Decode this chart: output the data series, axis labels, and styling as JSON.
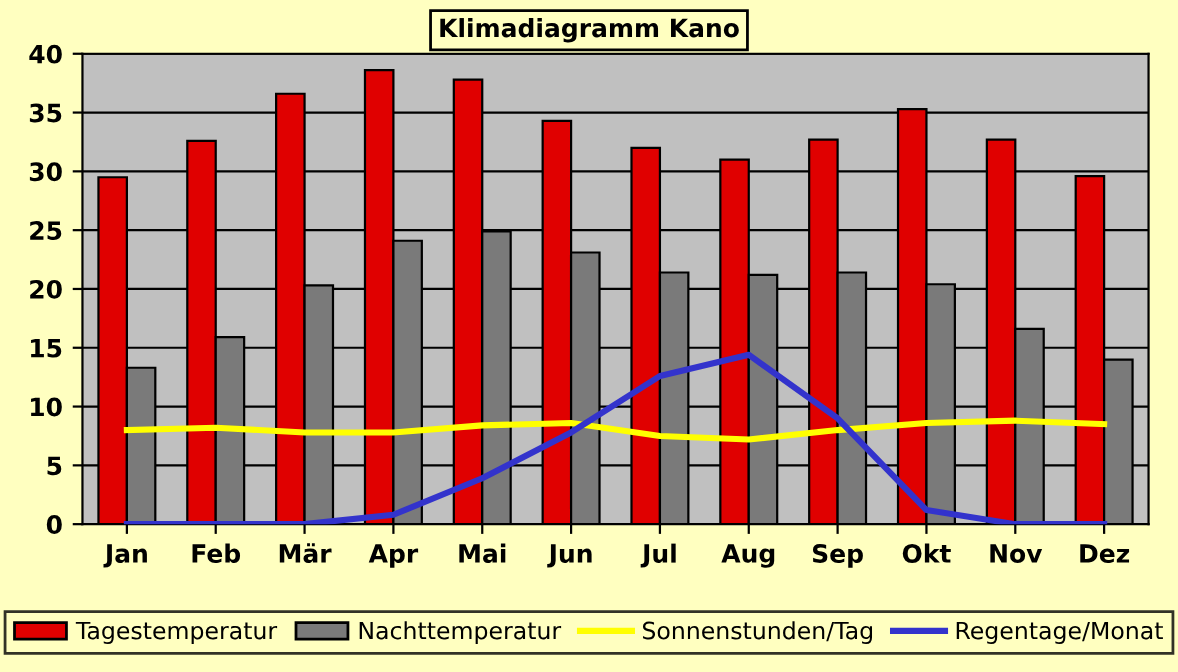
{
  "chart_data": {
    "type": "bar",
    "title": "Klimadiagramm Kano",
    "categories": [
      "Jan",
      "Feb",
      "Mär",
      "Apr",
      "Mai",
      "Jun",
      "Jul",
      "Aug",
      "Sep",
      "Okt",
      "Nov",
      "Dez"
    ],
    "series": [
      {
        "name": "Tagestemperatur",
        "color": "#e00000",
        "values": [
          29.5,
          32.6,
          36.6,
          38.6,
          37.8,
          34.3,
          32.0,
          31.0,
          32.7,
          35.3,
          32.7,
          29.6
        ]
      },
      {
        "name": "Nachttemperatur",
        "color": "#7a7a7a",
        "values": [
          13.3,
          15.9,
          20.3,
          24.1,
          24.9,
          23.1,
          21.4,
          21.2,
          21.4,
          20.4,
          16.6,
          14.0
        ]
      },
      {
        "name": "Sonnenstunden/Tag",
        "type": "line",
        "color": "#ffff00",
        "values": [
          8.0,
          8.2,
          7.8,
          7.8,
          8.4,
          8.6,
          7.5,
          7.2,
          8.0,
          8.6,
          8.8,
          8.5
        ]
      },
      {
        "name": "Regentage/Monat",
        "type": "line",
        "color": "#3333cc",
        "values": [
          0,
          0,
          0,
          0.8,
          3.9,
          7.8,
          12.6,
          14.4,
          9.0,
          1.2,
          0,
          0
        ]
      }
    ],
    "ylim": [
      0,
      40
    ],
    "yticks": [
      0,
      5,
      10,
      15,
      20,
      25,
      30,
      35,
      40
    ],
    "grid": "y",
    "legend": "bottom",
    "marker": "none",
    "line_style": "solid"
  }
}
